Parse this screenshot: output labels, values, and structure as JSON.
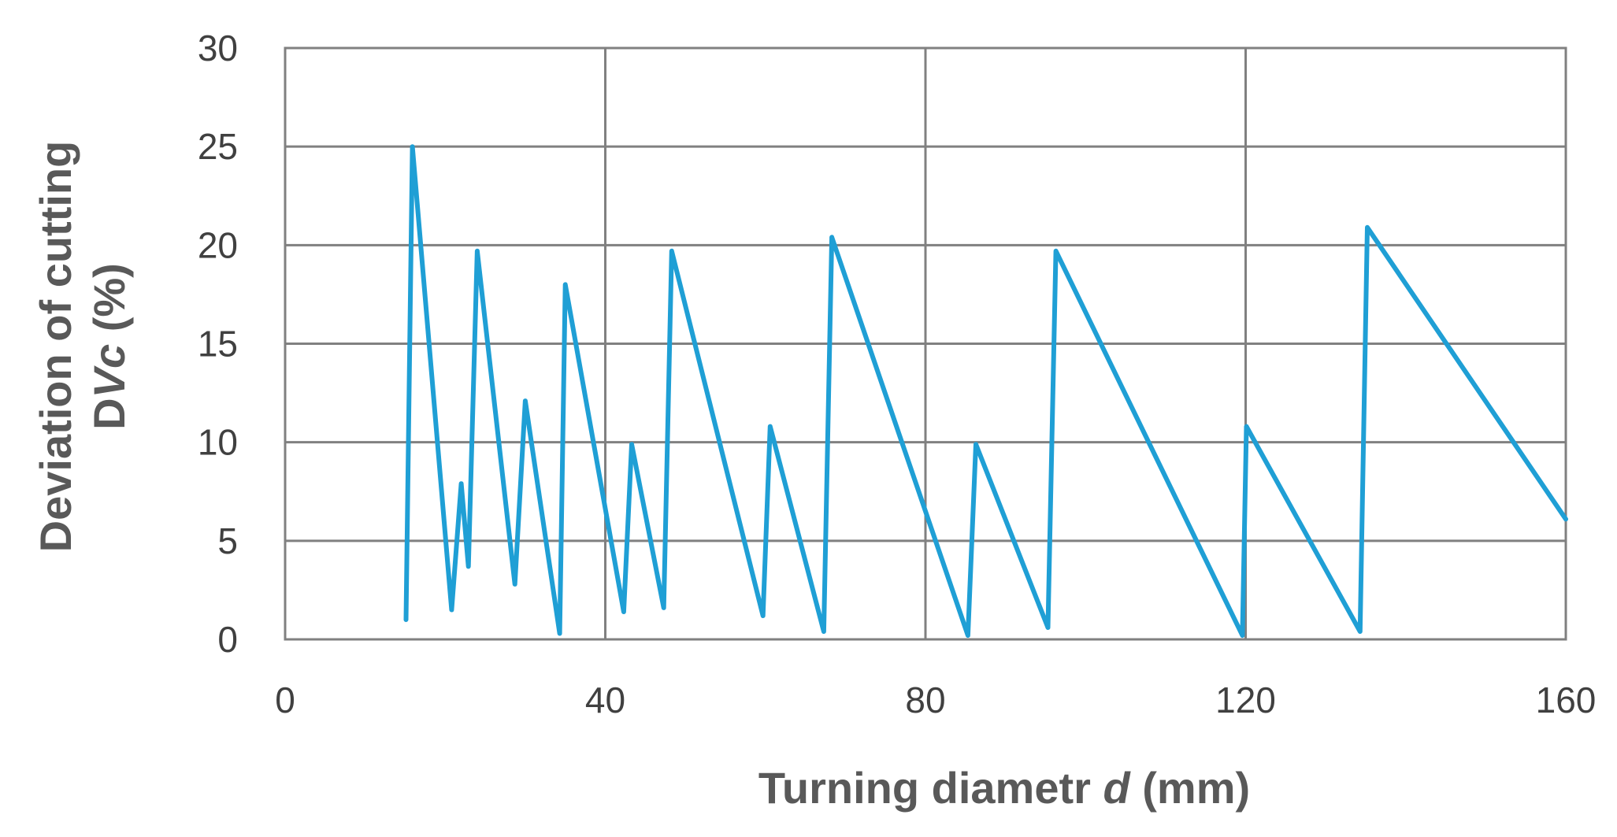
{
  "chart_data": {
    "type": "line",
    "title": "",
    "xlabel_parts": [
      "Turning diametr ",
      "d",
      " (mm)"
    ],
    "ylabel_line1": "Deviation of cutting",
    "ylabel_line2_parts": [
      "D",
      "Vc",
      " (%)"
    ],
    "xlim": [
      0,
      160
    ],
    "ylim": [
      0,
      30
    ],
    "x_ticks": [
      "0",
      "40",
      "80",
      "120",
      "160"
    ],
    "y_ticks": [
      "0",
      "5",
      "10",
      "15",
      "20",
      "25",
      "30"
    ],
    "grid": true,
    "legend": "none",
    "series": [
      {
        "color": "#1f9fd5",
        "points": [
          [
            15.1,
            1.0
          ],
          [
            15.9,
            25.0
          ],
          [
            20.8,
            1.5
          ],
          [
            22.0,
            7.9
          ],
          [
            22.9,
            3.7
          ],
          [
            24.0,
            19.7
          ],
          [
            28.7,
            2.8
          ],
          [
            30.0,
            12.1
          ],
          [
            34.3,
            0.3
          ],
          [
            35.0,
            18.0
          ],
          [
            42.3,
            1.4
          ],
          [
            43.3,
            9.9
          ],
          [
            47.3,
            1.6
          ],
          [
            48.3,
            19.7
          ],
          [
            59.7,
            1.2
          ],
          [
            60.6,
            10.8
          ],
          [
            67.3,
            0.4
          ],
          [
            68.3,
            20.4
          ],
          [
            85.3,
            0.2
          ],
          [
            86.3,
            9.9
          ],
          [
            95.3,
            0.6
          ],
          [
            96.3,
            19.7
          ],
          [
            119.6,
            0.2
          ],
          [
            120.1,
            10.8
          ],
          [
            134.3,
            0.4
          ],
          [
            135.2,
            20.9
          ],
          [
            160.0,
            6.1
          ]
        ]
      }
    ]
  }
}
